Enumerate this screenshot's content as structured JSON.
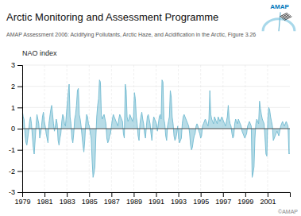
{
  "chart_data": {
    "type": "area",
    "title": "Arctic Monitoring and Assessment Programme",
    "subtitle": "AMAP Assessment 2006: Acidifying Pollutants, Arctic Haze, and Acidification in the Arctic, Figure 3.26",
    "y_label": "NAO index",
    "annotations": [
      "©AMAP",
      "AMAP"
    ],
    "color": "#7bbfd4",
    "grid": true,
    "xlim": [
      1979,
      2003
    ],
    "xticks": [
      1979,
      1981,
      1983,
      1985,
      1987,
      1989,
      1991,
      1993,
      1995,
      1997,
      1999,
      2001
    ],
    "ylim": [
      -3,
      3
    ],
    "yticks": [
      -3,
      -2,
      -1,
      0,
      1,
      2,
      3
    ],
    "values": [
      0.87,
      0.58,
      0.42,
      -0.23,
      -0.65,
      -0.78,
      -0.45,
      -0.12,
      0.34,
      0.56,
      0.23,
      -0.34,
      -0.89,
      -1.2,
      -0.56,
      0.12,
      0.67,
      0.45,
      0.23,
      -0.45,
      -0.23,
      0.12,
      0.56,
      0.78,
      0.34,
      0.12,
      -0.23,
      -0.45,
      -0.67,
      0.23,
      0.56,
      0.89,
      1.1,
      0.67,
      0.23,
      -0.12,
      0.12,
      0.45,
      0.23,
      -0.56,
      -0.78,
      -0.45,
      -0.23,
      0.34,
      0.67,
      0.56,
      0.23,
      0.12,
      0.67,
      1.2,
      1.7,
      2.1,
      0.56,
      0.23,
      -0.45,
      -0.67,
      -0.23,
      0.45,
      0.67,
      1.1,
      1.8,
      1.9,
      0.67,
      0.45,
      0.12,
      -0.34,
      -0.78,
      -1.1,
      -0.56,
      0.23,
      0.67,
      0.56,
      0.23,
      0.12,
      -0.23,
      -0.45,
      -1.5,
      -2.3,
      -2.1,
      -1.8,
      -0.45,
      0.56,
      1.1,
      1.4,
      2.3,
      2.2,
      0.67,
      0.45,
      0.56,
      0.67,
      0.45,
      0.23,
      -0.45,
      -0.67,
      -0.56,
      -0.34,
      -0.23,
      0.12,
      0.45,
      0.67,
      0.56,
      0.45,
      0.34,
      0.23,
      0.12,
      0.45,
      0.67,
      0.56,
      0.45,
      0.34,
      -0.23,
      -0.45,
      2.1,
      1.8,
      0.56,
      0.34,
      0.45,
      0.67,
      0.56,
      0.45,
      0.34,
      0.56,
      1.7,
      1.4,
      0.56,
      0.23,
      -0.34,
      -0.56,
      0.23,
      0.56,
      0.78,
      0.45,
      0.23,
      -0.23,
      -0.45,
      0.12,
      0.56,
      0.67,
      0.45,
      0.23,
      -0.23,
      -0.56,
      0.23,
      0.56,
      0.45,
      0.34,
      0.23,
      -0.12,
      0.23,
      0.56,
      0.67,
      0.45,
      2.3,
      2.2,
      0.45,
      0.23,
      -0.34,
      -0.56,
      0.12,
      0.34,
      0.56,
      1.8,
      1.5,
      0.56,
      0.23,
      -0.34,
      -0.56,
      -0.45,
      -0.23,
      0.12,
      -0.45,
      -0.67,
      -0.56,
      -0.45,
      0.23,
      0.56,
      0.67,
      0.56,
      0.45,
      0.34,
      0.23,
      0.12,
      -0.23,
      -0.78,
      -1.0,
      -0.89,
      -0.56,
      -0.34,
      -0.23,
      0.12,
      0.23,
      0.12,
      -0.12,
      -0.23,
      -0.45,
      -0.34,
      0.12,
      0.23,
      0.34,
      0.45,
      0.34,
      0.23,
      0.12,
      0.45,
      1.8,
      0.67,
      0.45,
      0.34,
      0.23,
      0.56,
      0.45,
      0.34,
      0.23,
      0.56,
      0.45,
      0.34,
      0.45,
      0.56,
      0.45,
      0.34,
      0.23,
      0.12,
      0.34,
      0.56,
      1.1,
      0.45,
      0.23,
      0.12,
      -0.23,
      -0.45,
      -0.34,
      0.23,
      0.45,
      0.34,
      0.23,
      0.45,
      0.34,
      0.23,
      0.12,
      -0.12,
      -0.23,
      -0.34,
      -0.45,
      -0.34,
      -0.23,
      0.12,
      0.23,
      0.34,
      0.23,
      0.12,
      -2.3,
      -2.1,
      -1.8,
      -0.45,
      0.23,
      0.45,
      0.34,
      0.23,
      1.3,
      0.95,
      0.67,
      0.45,
      0.34,
      0.23,
      -0.45,
      -1.2,
      -1.3,
      0.45,
      1.0,
      0.89,
      0.56,
      0.34,
      0.12,
      -0.56,
      -0.45,
      -0.34,
      -0.23,
      -0.12,
      -0.23,
      -0.34,
      -0.12,
      0.12,
      0.23,
      0.34,
      0.23,
      0.12,
      0.23,
      0.34,
      0.23,
      0.12,
      -1.2,
      -1.15
    ]
  }
}
